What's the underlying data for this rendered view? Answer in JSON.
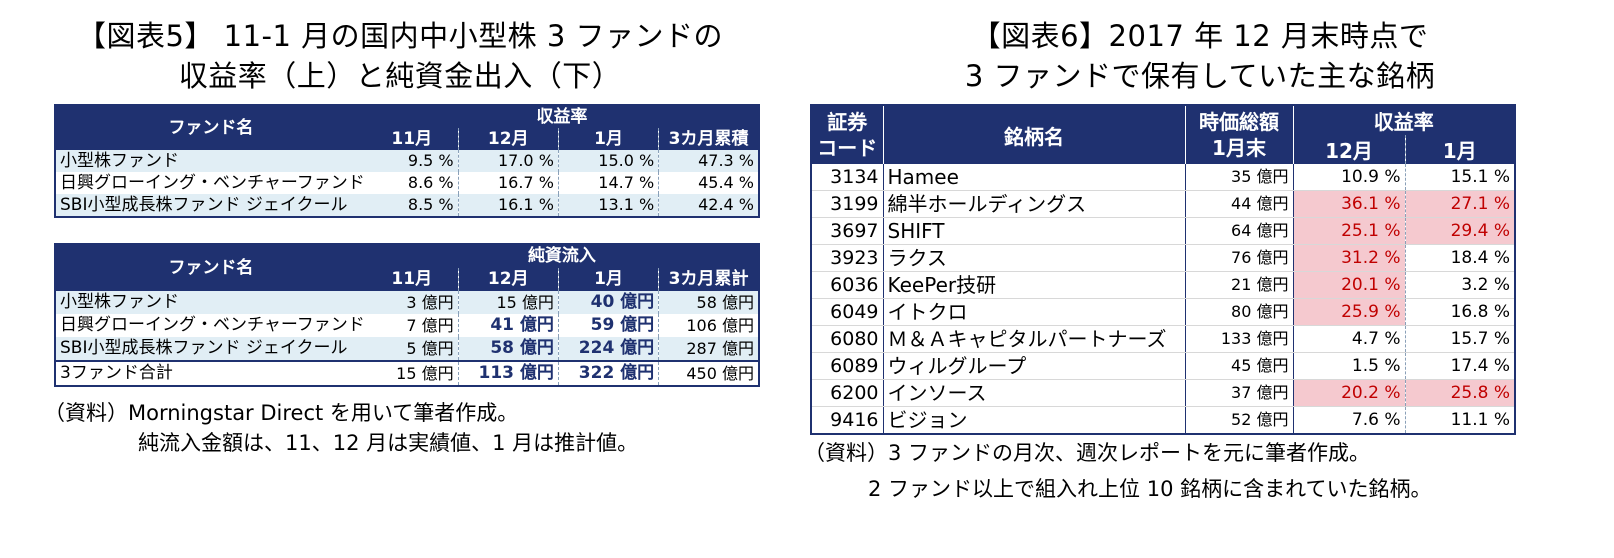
{
  "left": {
    "title_line1": "【図表5】 11-1 月の国内中小型株 3 ファンドの",
    "title_line2": "収益率（上）と純資金出入（下）",
    "return_table": {
      "fund_header": "ファンド名",
      "group_header": "収益率",
      "columns": [
        "11月",
        "12月",
        "1月",
        "3カ月累積"
      ],
      "rows": [
        {
          "name": "小型株ファンド",
          "values": [
            "9.5 %",
            "17.0 %",
            "15.0 %",
            "47.3 %"
          ]
        },
        {
          "name": "日興グローイング・ベンチャーファンド",
          "values": [
            "8.6 %",
            "16.7 %",
            "14.7 %",
            "45.4 %"
          ]
        },
        {
          "name": "SBI小型成長株ファンド ジェイクール",
          "values": [
            "8.5 %",
            "16.1 %",
            "13.1 %",
            "42.4 %"
          ]
        }
      ]
    },
    "flow_table": {
      "fund_header": "ファンド名",
      "group_header": "純資流入",
      "columns": [
        "11月",
        "12月",
        "1月",
        "3カ月累計"
      ],
      "rows": [
        {
          "name": "小型株ファンド",
          "values": [
            "3 億円",
            "15 億円",
            "40 億円",
            "58 億円"
          ]
        },
        {
          "name": "日興グローイング・ベンチャーファンド",
          "values": [
            "7 億円",
            "41 億円",
            "59 億円",
            "106 億円"
          ]
        },
        {
          "name": "SBI小型成長株ファンド ジェイクール",
          "values": [
            "5 億円",
            "58 億円",
            "224 億円",
            "287 億円"
          ]
        }
      ],
      "total": {
        "name": "3ファンド合計",
        "values": [
          "15 億円",
          "113 億円",
          "322 億円",
          "450 億円"
        ]
      }
    },
    "note_line1": "（資料）Morningstar Direct を用いて筆者作成。",
    "note_line2": "純流入金額は、11、12 月は実績値、1 月は推計値。"
  },
  "right": {
    "title_line1": "【図表6】2017 年 12 月末時点で",
    "title_line2": "3 ファンドで保有していた主な銘柄",
    "table": {
      "code_header_1": "証券",
      "code_header_2": "コード",
      "name_header": "銘柄名",
      "mcap_header_1": "時価総額",
      "mcap_header_2": "1月末",
      "return_header": "収益率",
      "dec_header": "12月",
      "jan_header": "1月",
      "rows": [
        {
          "code": "3134",
          "name": "Hamee",
          "mcap": "35 億円",
          "dec": "10.9 %",
          "jan": "15.1 %"
        },
        {
          "code": "3199",
          "name": "綿半ホールディングス",
          "mcap": "44 億円",
          "dec": "36.1 %",
          "jan": "27.1 %"
        },
        {
          "code": "3697",
          "name": "SHIFT",
          "mcap": "64 億円",
          "dec": "25.1 %",
          "jan": "29.4 %"
        },
        {
          "code": "3923",
          "name": "ラクス",
          "mcap": "76 億円",
          "dec": "31.2 %",
          "jan": "18.4 %"
        },
        {
          "code": "6036",
          "name": "KeePer技研",
          "mcap": "21 億円",
          "dec": "20.1 %",
          "jan": "3.2 %"
        },
        {
          "code": "6049",
          "name": "イトクロ",
          "mcap": "80 億円",
          "dec": "25.9 %",
          "jan": "16.8 %"
        },
        {
          "code": "6080",
          "name": "Ｍ＆Ａキャピタルパートナーズ",
          "mcap": "133 億円",
          "dec": "4.7 %",
          "jan": "15.7 %"
        },
        {
          "code": "6089",
          "name": "ウィルグループ",
          "mcap": "45 億円",
          "dec": "1.5 %",
          "jan": "17.4 %"
        },
        {
          "code": "6200",
          "name": "インソース",
          "mcap": "37 億円",
          "dec": "20.2 %",
          "jan": "25.8 %"
        },
        {
          "code": "9416",
          "name": "ビジョン",
          "mcap": "52 億円",
          "dec": "7.6 %",
          "jan": "11.1 %"
        }
      ]
    },
    "note_line1": "（資料）3 ファンドの月次、週次レポートを元に筆者作成。",
    "note_line2": "2 ファンド以上で組入れ上位 10 銘柄に含まれていた銘柄。"
  },
  "colors": {
    "header_navy": "#1f3170",
    "row_tint": "#e1eef5",
    "highlight_pink": "#f5c9cf",
    "highlight_text": "#c00000"
  }
}
